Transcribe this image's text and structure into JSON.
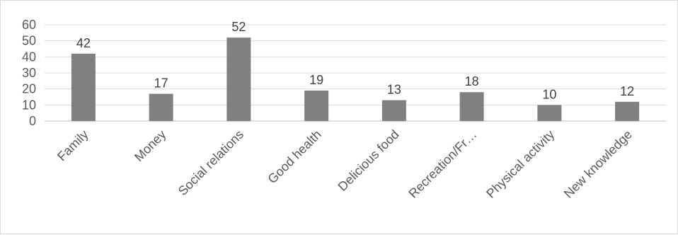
{
  "chart_data": {
    "type": "bar",
    "title": "",
    "xlabel": "",
    "ylabel": "",
    "categories": [
      "Family",
      "Money",
      "Social relations",
      "Good health",
      "Delicious food",
      "Recreation/Fr…",
      "Physical activity",
      "New knowledge"
    ],
    "values": [
      42,
      17,
      52,
      19,
      13,
      18,
      10,
      12
    ],
    "ylim": [
      0,
      60
    ],
    "yticks": [
      0,
      10,
      20,
      30,
      40,
      50,
      60
    ],
    "grid": true,
    "legend": "none",
    "data_labels": true
  },
  "colors": {
    "bar": "#808080",
    "gridline": "#d9d9d9",
    "text": "#595959"
  }
}
